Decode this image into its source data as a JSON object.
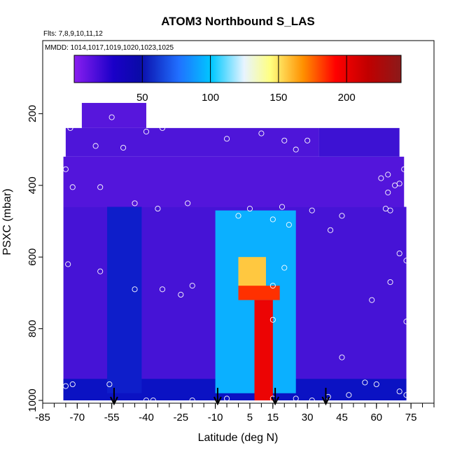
{
  "chart_data": {
    "type": "heatmap",
    "title": "ATOM3 Northbound S_LAS",
    "subtitle": "Flts: 7,8,9,10,11,12",
    "annotation": "MMDD: 1014,1017,1019,1020,1023,1025",
    "xlabel": "Latitude (deg N)",
    "ylabel": "PSXC (mbar)",
    "xlim": [
      -85,
      85
    ],
    "ylim": [
      1000,
      0
    ],
    "x_ticks": [
      -85,
      -70,
      -55,
      -40,
      -25,
      -10,
      5,
      15,
      30,
      45,
      60,
      75
    ],
    "x_tick_labels": [
      "-85",
      "-70",
      "-55",
      "-40",
      "-25",
      "-10",
      "5",
      "15",
      "30",
      "45",
      "60",
      "75"
    ],
    "y_ticks": [
      200,
      400,
      600,
      800,
      1000
    ],
    "y_tick_labels": [
      "200",
      "400",
      "600",
      "800",
      "1000"
    ],
    "colorbar": {
      "range": [
        0,
        240
      ],
      "ticks": [
        50,
        100,
        150,
        200
      ],
      "tick_labels": [
        "50",
        "100",
        "150",
        "200"
      ],
      "colors": [
        "#8a1ef0",
        "#0a0abf",
        "#2080ff",
        "#00c8ff",
        "#ffffff",
        "#ffff80",
        "#ff9000",
        "#ff0000",
        "#8b1a1a"
      ]
    },
    "arrows_latitude": [
      -54,
      -9,
      16,
      38
    ],
    "observations": [
      [
        -73,
        205
      ],
      [
        -55,
        210
      ],
      [
        -40,
        250
      ],
      [
        -33,
        240
      ],
      [
        -20,
        215
      ],
      [
        -15,
        210
      ],
      [
        -5,
        200
      ],
      [
        -73,
        240
      ],
      [
        -62,
        290
      ],
      [
        -50,
        295
      ],
      [
        -5,
        270
      ],
      [
        10,
        255
      ],
      [
        20,
        275
      ],
      [
        25,
        300
      ],
      [
        30,
        275
      ],
      [
        45,
        225
      ],
      [
        -75,
        355
      ],
      [
        -72,
        405
      ],
      [
        -60,
        405
      ],
      [
        -45,
        450
      ],
      [
        -35,
        465
      ],
      [
        -22,
        450
      ],
      [
        0,
        485
      ],
      [
        5,
        465
      ],
      [
        15,
        495
      ],
      [
        19,
        460
      ],
      [
        32,
        470
      ],
      [
        45,
        485
      ],
      [
        62,
        380
      ],
      [
        65,
        370
      ],
      [
        70,
        395
      ],
      [
        72,
        355
      ],
      [
        65,
        420
      ],
      [
        68,
        400
      ],
      [
        78,
        405
      ],
      [
        64,
        465
      ],
      [
        66,
        470
      ],
      [
        40,
        525
      ],
      [
        22,
        510
      ],
      [
        -74,
        620
      ],
      [
        -60,
        640
      ],
      [
        -45,
        690
      ],
      [
        -33,
        690
      ],
      [
        -25,
        705
      ],
      [
        -20,
        680
      ],
      [
        15,
        680
      ],
      [
        20,
        630
      ],
      [
        15,
        775
      ],
      [
        58,
        720
      ],
      [
        75,
        560
      ],
      [
        70,
        590
      ],
      [
        73,
        610
      ],
      [
        77,
        670
      ],
      [
        76,
        670
      ],
      [
        66,
        670
      ],
      [
        73,
        780
      ],
      [
        -75,
        960
      ],
      [
        -72,
        955
      ],
      [
        -56,
        955
      ],
      [
        -40,
        1000
      ],
      [
        -37,
        1000
      ],
      [
        -20,
        1000
      ],
      [
        -5,
        995
      ],
      [
        15,
        995
      ],
      [
        25,
        995
      ],
      [
        32,
        1000
      ],
      [
        39,
        990
      ],
      [
        48,
        985
      ],
      [
        55,
        950
      ],
      [
        60,
        955
      ],
      [
        45,
        880
      ],
      [
        70,
        975
      ],
      [
        73,
        985
      ]
    ],
    "field": [
      {
        "lat_min": -68,
        "lat_max": -40,
        "p_min": 170,
        "p_max": 240,
        "value": 12
      },
      {
        "lat_min": -75,
        "lat_max": 35,
        "p_min": 240,
        "p_max": 320,
        "value": 14
      },
      {
        "lat_min": 35,
        "lat_max": 70,
        "p_min": 240,
        "p_max": 320,
        "value": 18
      },
      {
        "lat_min": -76,
        "lat_max": 72,
        "p_min": 320,
        "p_max": 460,
        "value": 13
      },
      {
        "lat_min": -57,
        "lat_max": -42,
        "p_min": 460,
        "p_max": 980,
        "value": 35
      },
      {
        "lat_min": -10,
        "lat_max": 25,
        "p_min": 470,
        "p_max": 980,
        "value": 80
      },
      {
        "lat_min": 0,
        "lat_max": 12,
        "p_min": 600,
        "p_max": 700,
        "value": 165
      },
      {
        "lat_min": 0,
        "lat_max": 18,
        "p_min": 680,
        "p_max": 720,
        "value": 200
      },
      {
        "lat_min": 7,
        "lat_max": 15,
        "p_min": 720,
        "p_max": 1000,
        "value": 215
      }
    ]
  }
}
